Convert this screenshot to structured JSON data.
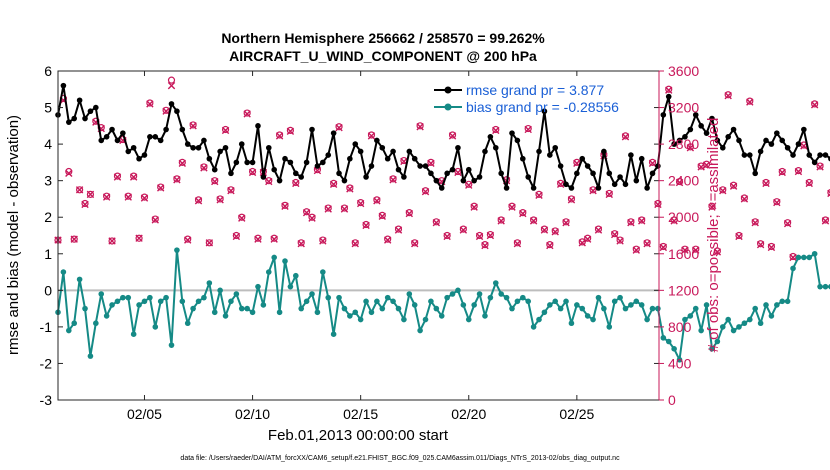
{
  "chart_data": {
    "type": "line",
    "title_line1": "Northern Hemisphere 256662 / 258570 = 99.262%",
    "title_line2": "AIRCRAFT_U_WIND_COMPONENT @ 200 hPa",
    "xlabel": "Feb.01,2013 00:00:00 start",
    "ylabel": "rmse and bias (model - observation)",
    "y2label": "# of obs: o=possible; ×=assimilated",
    "xlim": [
      1,
      28.8
    ],
    "ylim": [
      -3,
      6
    ],
    "y2lim": [
      0,
      3600
    ],
    "x_ticks": [
      5,
      10,
      15,
      20,
      25
    ],
    "x_tick_labels": [
      "02/05",
      "02/10",
      "02/15",
      "02/20",
      "02/25"
    ],
    "y_ticks": [
      -3,
      -2,
      -1,
      0,
      1,
      2,
      3,
      4,
      5,
      6
    ],
    "y_tick_labels": [
      "-3",
      "-2",
      "-1",
      "0",
      "1",
      "2",
      "3",
      "4",
      "5",
      "6"
    ],
    "y2_ticks": [
      0,
      400,
      800,
      1200,
      1600,
      2000,
      2400,
      2800,
      3200,
      3600
    ],
    "y2_tick_labels": [
      "0",
      "400",
      "800",
      "1200",
      "1600",
      "2000",
      "2400",
      "2800",
      "3200",
      "3600"
    ],
    "legend": {
      "position": "top-right",
      "entries": [
        "rmse grand pr = 3.877",
        "bias grand pr = -0.28556"
      ]
    },
    "series": [
      {
        "name": "rmse",
        "color": "#000000",
        "x_start": 1.0,
        "x_step": 0.25,
        "values": [
          4.8,
          5.6,
          4.6,
          4.7,
          5.2,
          4.7,
          4.9,
          5.0,
          4.1,
          4.2,
          4.4,
          4.1,
          4.3,
          3.8,
          3.9,
          3.6,
          3.7,
          4.2,
          4.2,
          4.1,
          4.4,
          5.1,
          4.9,
          4.4,
          4.0,
          3.9,
          3.9,
          4.1,
          3.6,
          3.3,
          3.8,
          3.9,
          3.2,
          3.5,
          4.0,
          3.5,
          3.5,
          4.5,
          3.1,
          3.9,
          3.3,
          3.0,
          3.6,
          3.5,
          3.2,
          3.1,
          3.5,
          4.4,
          3.4,
          3.5,
          3.7,
          4.3,
          3.2,
          3.0,
          3.6,
          4.0,
          3.8,
          3.1,
          3.4,
          4.1,
          3.9,
          3.6,
          3.8,
          3.3,
          3.1,
          3.8,
          3.6,
          3.4,
          3.4,
          3.2,
          3.0,
          2.8,
          3.2,
          3.3,
          3.9,
          3.0,
          3.3,
          3.0,
          3.1,
          3.8,
          4.2,
          3.9,
          3.2,
          2.8,
          4.3,
          4.1,
          3.6,
          3.1,
          2.8,
          3.8,
          4.9,
          3.7,
          3.9,
          3.4,
          2.9,
          2.8,
          3.2,
          3.6,
          3.4,
          3.2,
          2.8,
          3.8,
          3.2,
          2.9,
          3.1,
          2.9,
          3.7,
          3.0,
          3.6,
          2.8,
          3.2,
          3.4,
          4.8,
          5.3,
          4.0,
          4.1,
          4.2,
          4.4,
          4.8,
          4.5,
          4.3,
          4.7,
          4.1,
          3.9,
          4.2,
          4.4,
          4.1,
          3.7,
          3.7,
          3.2,
          3.8,
          4.1,
          4.0,
          4.3,
          4.1,
          3.9,
          3.7,
          4.0,
          4.4,
          3.7,
          3.5,
          3.7,
          3.7,
          3.6,
          3.7,
          3.4
        ]
      },
      {
        "name": "bias",
        "color": "#158a86",
        "x_start": 1.0,
        "x_step": 0.25,
        "values": [
          -0.6,
          0.5,
          -1.1,
          -0.9,
          0.3,
          -0.5,
          -1.8,
          -0.9,
          -0.1,
          -0.7,
          -0.4,
          -0.3,
          -0.2,
          -0.2,
          -1.2,
          -0.4,
          -0.3,
          -0.2,
          -1.0,
          -0.3,
          -0.2,
          -1.5,
          1.1,
          -0.3,
          -0.9,
          -0.5,
          -0.3,
          -0.2,
          0.2,
          -0.6,
          0.0,
          -0.7,
          -0.3,
          -0.1,
          -0.5,
          -0.5,
          -0.6,
          0.1,
          -0.4,
          0.5,
          0.9,
          -0.6,
          0.8,
          0.1,
          0.4,
          -0.5,
          -0.3,
          -0.1,
          -0.6,
          0.5,
          -0.2,
          -1.2,
          -0.2,
          -0.5,
          -0.7,
          -0.6,
          -0.8,
          -0.3,
          -0.6,
          -0.3,
          -0.5,
          -0.2,
          -0.3,
          -0.5,
          -0.8,
          -0.1,
          -0.4,
          -1.1,
          -0.8,
          -0.3,
          -0.5,
          -0.7,
          -0.2,
          -0.1,
          0.0,
          -0.4,
          -0.8,
          -0.4,
          -0.1,
          -0.7,
          -0.2,
          0.2,
          -0.1,
          -0.2,
          -0.5,
          -0.3,
          -0.2,
          -0.3,
          -1.0,
          -0.8,
          -0.6,
          -0.4,
          -0.3,
          -0.5,
          -0.3,
          -0.9,
          -0.4,
          -0.5,
          -0.7,
          -0.8,
          -0.2,
          -0.5,
          -1.0,
          -0.3,
          -0.2,
          -0.5,
          -0.4,
          -0.3,
          -0.4,
          -0.8,
          -0.5,
          -0.5,
          -1.3,
          -1.4,
          -1.6,
          -1.9,
          -0.8,
          -0.7,
          -0.5,
          -1.1,
          -0.4,
          -1.6,
          -1.4,
          -1.0,
          -0.8,
          -1.1,
          -1.0,
          -0.9,
          -0.8,
          -0.5,
          -0.9,
          -0.4,
          -0.7,
          -0.4,
          -0.3,
          -0.3,
          0.6,
          0.9,
          0.9,
          0.9,
          1.0,
          0.1,
          0.1,
          0.1,
          0.0,
          0.0
        ]
      },
      {
        "name": "# of obs possible",
        "color": "#c8185a",
        "marker": "circle",
        "x_start": 1.0,
        "x_step": 0.25,
        "values": [
          1750,
          3300,
          2500,
          1760,
          2300,
          2150,
          2250,
          3050,
          2980,
          2230,
          1740,
          2450,
          2850,
          2230,
          2450,
          1770,
          2220,
          3250,
          1980,
          2330,
          3170,
          3500,
          2420,
          2600,
          1760,
          3010,
          2190,
          2550,
          1720,
          2400,
          2200,
          2960,
          2300,
          1800,
          2000,
          3140,
          2500,
          1770,
          2500,
          2400,
          1770,
          2900,
          2130,
          2950,
          2380,
          1720,
          2060,
          2000,
          2520,
          1750,
          2100,
          2370,
          2990,
          2100,
          2320,
          1720,
          2160,
          1920,
          2900,
          2190,
          2020,
          1760,
          2420,
          1870,
          2620,
          2050,
          1720,
          3000,
          2290,
          2600,
          1950,
          2400,
          1800,
          2900,
          2500,
          1870,
          2360,
          2120,
          1800,
          1700,
          1810,
          2960,
          1970,
          2410,
          2120,
          1720,
          2050,
          2970,
          1970,
          2250,
          1870,
          1700,
          1850,
          2370,
          1950,
          2200,
          2600,
          1730,
          1770,
          2300,
          1870,
          2680,
          2260,
          1820,
          1750,
          2890,
          1950,
          1650,
          1970,
          1720,
          2600,
          2150,
          1680,
          3400,
          1970,
          2390,
          1650,
          2770,
          1650,
          2560,
          2580,
          2120,
          1630,
          2300,
          3340,
          2350,
          1800,
          2210,
          3270,
          1950,
          1710,
          2380,
          1680,
          2170,
          2500,
          1940,
          1570,
          2510,
          2790,
          2380,
          3240,
          2560,
          1970,
          2270,
          1980,
          0
        ]
      },
      {
        "name": "# of obs assimilated",
        "color": "#c8185a",
        "marker": "x",
        "x_start": 1.0,
        "x_step": 0.25,
        "values": [
          1750,
          3280,
          2480,
          1760,
          2300,
          2140,
          2250,
          3040,
          2970,
          2220,
          1740,
          2440,
          2840,
          2220,
          2440,
          1770,
          2210,
          3240,
          1970,
          2320,
          3160,
          3440,
          2410,
          2590,
          1750,
          3000,
          2180,
          2540,
          1720,
          2390,
          2190,
          2950,
          2290,
          1790,
          1990,
          3130,
          2490,
          1760,
          2490,
          2390,
          1760,
          2890,
          2120,
          2940,
          2370,
          1710,
          2050,
          1990,
          2510,
          1740,
          2090,
          2360,
          2980,
          2090,
          2310,
          1710,
          2150,
          1910,
          2890,
          2180,
          2010,
          1750,
          2410,
          1860,
          2610,
          2040,
          1710,
          2990,
          2280,
          2590,
          1940,
          2390,
          1790,
          2890,
          2490,
          1860,
          2350,
          2110,
          1790,
          1690,
          1800,
          2950,
          1960,
          2400,
          2110,
          1710,
          2040,
          2960,
          1960,
          2240,
          1860,
          1690,
          1840,
          2360,
          1940,
          2190,
          2590,
          1720,
          1760,
          2290,
          1860,
          2670,
          2250,
          1810,
          1740,
          2880,
          1940,
          1640,
          1960,
          1710,
          2590,
          2140,
          1670,
          3390,
          1960,
          2380,
          1640,
          2760,
          1640,
          2550,
          2570,
          2110,
          1620,
          2290,
          3330,
          2340,
          1790,
          2200,
          3260,
          1940,
          1700,
          2370,
          1670,
          2160,
          2490,
          1930,
          1560,
          2500,
          2780,
          2370,
          3230,
          2550,
          1960,
          2260,
          1970,
          0
        ]
      }
    ],
    "footnote": "data file: /Users/raeder/DAI/ATM_forcXX/CAM6_setup/f.e21.FHIST_BGC.f09_025.CAM6assim.011/Diags_NTrS_2013-02/obs_diag_output.nc"
  },
  "colors": {
    "rmse": "#000000",
    "bias": "#158a86",
    "obs": "#c8185a",
    "legend_text": "#1a5fd6",
    "zero_line": "#bdbdbd"
  }
}
